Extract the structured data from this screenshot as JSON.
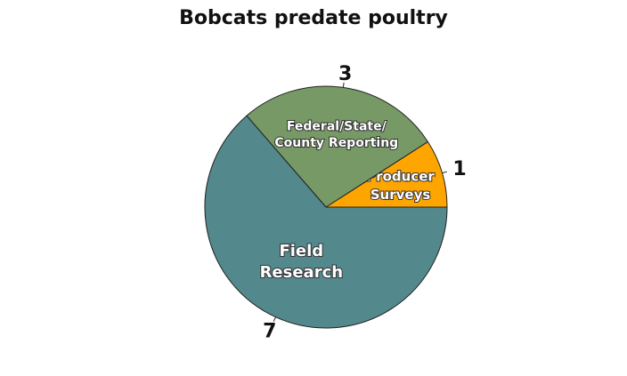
{
  "chart_data": {
    "type": "pie",
    "title": "Bobcats predate poultry",
    "slices": [
      {
        "label": [
          "Producer",
          "Surveys"
        ],
        "value": 1,
        "color": "#FFA500"
      },
      {
        "label": [
          "Federal/State/",
          "County Reporting"
        ],
        "value": 3,
        "color": "#779966"
      },
      {
        "label": [
          "Field",
          "Research"
        ],
        "value": 7,
        "color": "#53888C"
      }
    ]
  }
}
